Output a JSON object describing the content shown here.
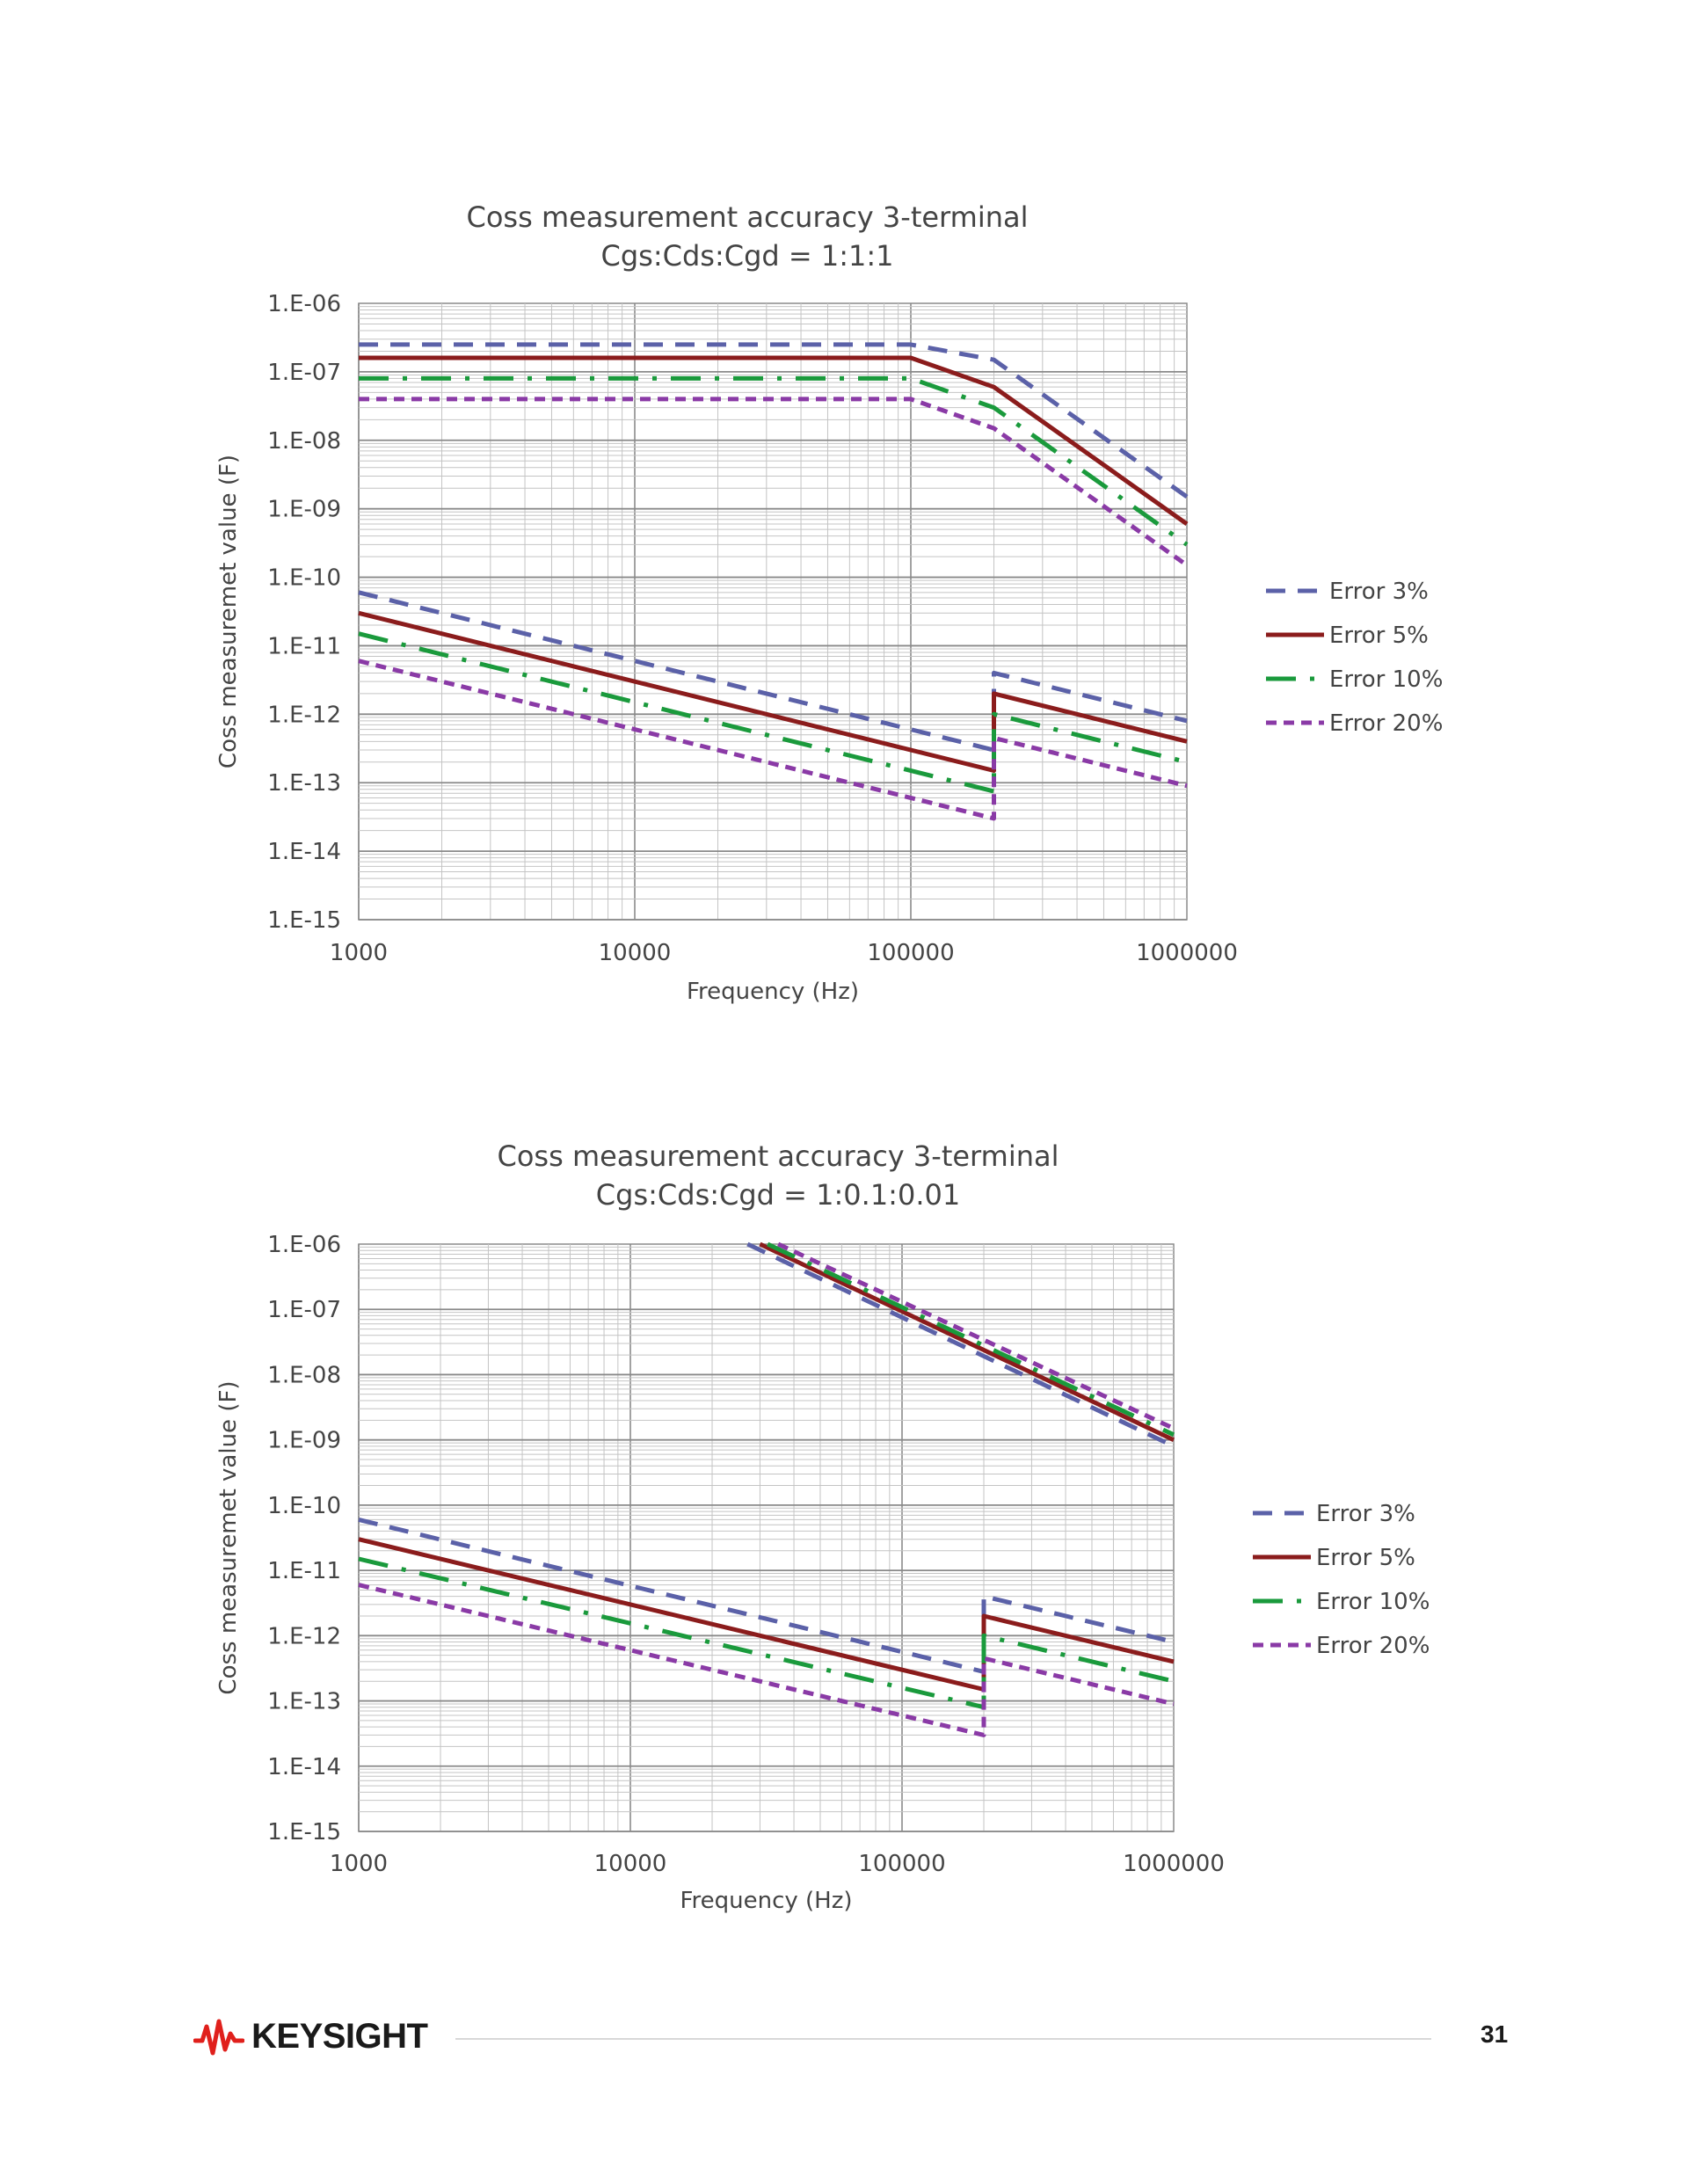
{
  "chart_data": [
    {
      "type": "line",
      "title": "Coss  measurement accuracy  3-terminal",
      "subtitle": "Cgs:Cds:Cgd = 1:1:1",
      "xlabel": "Frequency (Hz)",
      "ylabel": "Coss measuremet value (F)",
      "xscale": "log",
      "yscale": "log",
      "xlim": [
        1000,
        1000000
      ],
      "ylim": [
        1e-15,
        1e-06
      ],
      "x_ticks": [
        "1000",
        "10000",
        "100000",
        "1000000"
      ],
      "y_ticks": [
        "1.E-15",
        "1.E-14",
        "1.E-13",
        "1.E-12",
        "1.E-11",
        "1.E-10",
        "1.E-09",
        "1.E-08",
        "1.E-07",
        "1.E-06"
      ],
      "grid": true,
      "legend_position": "right",
      "series": [
        {
          "name": "Error 3%",
          "color": "#5b61a8",
          "style": "dash",
          "upper": [
            [
              1000,
              2.5e-07
            ],
            [
              100000,
              2.5e-07
            ],
            [
              200000,
              1.5e-07
            ],
            [
              1000000,
              1.5e-09
            ]
          ],
          "lower": [
            [
              1000,
              6e-11
            ],
            [
              200000,
              3e-13
            ],
            [
              200000,
              4e-12
            ],
            [
              1000000,
              8e-13
            ]
          ]
        },
        {
          "name": "Error 5%",
          "color": "#8b1c1c",
          "style": "solid",
          "upper": [
            [
              1000,
              1.6e-07
            ],
            [
              100000,
              1.6e-07
            ],
            [
              200000,
              6e-08
            ],
            [
              1000000,
              6e-10
            ]
          ],
          "lower": [
            [
              1000,
              3e-11
            ],
            [
              200000,
              1.5e-13
            ],
            [
              200000,
              2e-12
            ],
            [
              1000000,
              4e-13
            ]
          ]
        },
        {
          "name": "Error 10%",
          "color": "#1a9a3c",
          "style": "dashdot",
          "upper": [
            [
              1000,
              8e-08
            ],
            [
              100000,
              8e-08
            ],
            [
              200000,
              3e-08
            ],
            [
              1000000,
              3e-10
            ]
          ],
          "lower": [
            [
              1000,
              1.5e-11
            ],
            [
              200000,
              7.5e-14
            ],
            [
              200000,
              1e-12
            ],
            [
              1000000,
              2e-13
            ]
          ]
        },
        {
          "name": "Error 20%",
          "color": "#8a3aa6",
          "style": "shortdash",
          "upper": [
            [
              1000,
              4e-08
            ],
            [
              100000,
              4e-08
            ],
            [
              200000,
              1.5e-08
            ],
            [
              1000000,
              1.5e-10
            ]
          ],
          "lower": [
            [
              1000,
              6e-12
            ],
            [
              200000,
              3e-14
            ],
            [
              200000,
              4.5e-13
            ],
            [
              1000000,
              9e-14
            ]
          ]
        }
      ]
    },
    {
      "type": "line",
      "title": "Coss  measurement accuracy 3-terminal",
      "subtitle": "Cgs:Cds:Cgd = 1:0.1:0.01",
      "xlabel": "Frequency (Hz)",
      "ylabel": "Coss measuremet value (F)",
      "xscale": "log",
      "yscale": "log",
      "xlim": [
        1000,
        1000000
      ],
      "ylim": [
        1e-15,
        1e-06
      ],
      "x_ticks": [
        "1000",
        "10000",
        "100000",
        "1000000"
      ],
      "y_ticks": [
        "1.E-15",
        "1.E-14",
        "1.E-13",
        "1.E-12",
        "1.E-11",
        "1.E-10",
        "1.E-09",
        "1.E-08",
        "1.E-07",
        "1.E-06"
      ],
      "grid": true,
      "legend_position": "right",
      "series": [
        {
          "name": "Error 3%",
          "color": "#5b61a8",
          "style": "dash",
          "upper": [
            [
              27000,
              1e-06
            ],
            [
              1000000,
              8e-10
            ]
          ],
          "lower": [
            [
              1000,
              6e-11
            ],
            [
              200000,
              2.8e-13
            ],
            [
              200000,
              4e-12
            ],
            [
              1000000,
              8e-13
            ]
          ]
        },
        {
          "name": "Error 5%",
          "color": "#8b1c1c",
          "style": "solid",
          "upper": [
            [
              30000,
              1e-06
            ],
            [
              1000000,
              1e-09
            ]
          ],
          "lower": [
            [
              1000,
              3e-11
            ],
            [
              200000,
              1.5e-13
            ],
            [
              200000,
              2e-12
            ],
            [
              1000000,
              4e-13
            ]
          ]
        },
        {
          "name": "Error 10%",
          "color": "#1a9a3c",
          "style": "dashdot",
          "upper": [
            [
              32000,
              1e-06
            ],
            [
              1000000,
              1.2e-09
            ]
          ],
          "lower": [
            [
              1000,
              1.5e-11
            ],
            [
              200000,
              8e-14
            ],
            [
              200000,
              1e-12
            ],
            [
              1000000,
              2e-13
            ]
          ]
        },
        {
          "name": "Error 20%",
          "color": "#8a3aa6",
          "style": "shortdash",
          "upper": [
            [
              35000,
              1e-06
            ],
            [
              1000000,
              1.5e-09
            ]
          ],
          "lower": [
            [
              1000,
              6e-12
            ],
            [
              200000,
              3e-14
            ],
            [
              200000,
              4.5e-13
            ],
            [
              1000000,
              9e-14
            ]
          ]
        }
      ]
    }
  ],
  "footer": {
    "brand_name": "KEYSIGHT",
    "page_number": "31"
  },
  "colors": {
    "brand_red": "#e0201c"
  }
}
